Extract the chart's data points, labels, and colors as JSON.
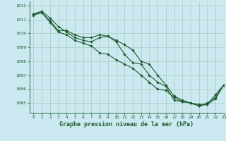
{
  "title": "Graphe pression niveau de la mer (hPa)",
  "bg_color": "#cce8f0",
  "grid_color": "#aaccbb",
  "line_color": "#1a5c2a",
  "marker_color": "#1a5c2a",
  "xlim": [
    -0.5,
    23
  ],
  "ylim": [
    1004.3,
    1012.3
  ],
  "yticks": [
    1005,
    1006,
    1007,
    1008,
    1009,
    1010,
    1011,
    1012
  ],
  "xticks": [
    0,
    1,
    2,
    3,
    4,
    5,
    6,
    7,
    8,
    9,
    10,
    11,
    12,
    13,
    14,
    15,
    16,
    17,
    18,
    19,
    20,
    21,
    22,
    23
  ],
  "series": [
    [
      1011.4,
      1011.6,
      1011.1,
      1010.5,
      1010.1,
      1009.7,
      1009.5,
      1009.4,
      1009.7,
      1009.8,
      1009.4,
      1008.5,
      1007.9,
      1007.8,
      1007.0,
      1006.5,
      1006.2,
      1005.2,
      1005.1,
      1005.0,
      1004.8,
      1005.0,
      1005.4,
      1006.3
    ],
    [
      1011.3,
      1011.5,
      1010.9,
      1010.2,
      1010.2,
      1009.9,
      1009.7,
      1009.7,
      1009.9,
      1009.8,
      1009.5,
      1009.2,
      1008.8,
      1008.0,
      1007.8,
      1007.0,
      1006.3,
      1005.5,
      1005.2,
      1005.0,
      1004.9,
      1004.9,
      1005.3,
      1006.3
    ],
    [
      1011.4,
      1011.5,
      1010.8,
      1010.1,
      1009.9,
      1009.5,
      1009.3,
      1009.1,
      1008.6,
      1008.5,
      1008.1,
      1007.8,
      1007.5,
      1007.0,
      1006.5,
      1006.0,
      1005.9,
      1005.4,
      1005.1,
      1005.0,
      1004.8,
      1004.9,
      1005.6,
      1006.3
    ]
  ]
}
